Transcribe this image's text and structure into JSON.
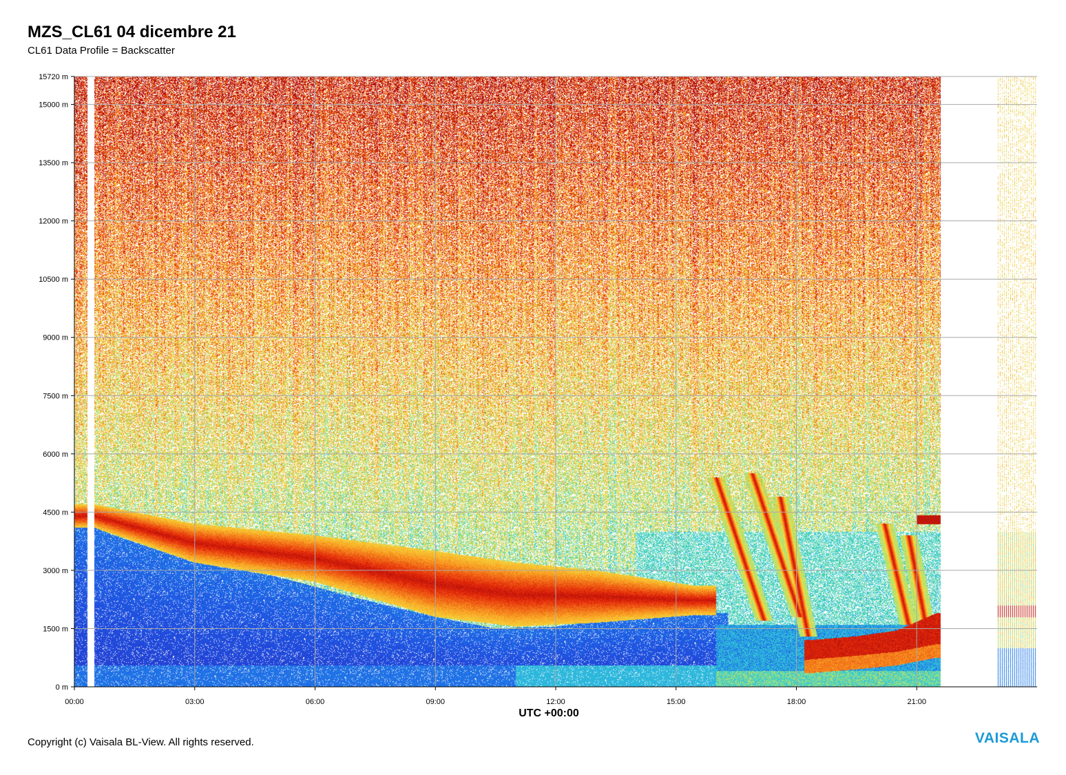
{
  "header": {
    "title": "MZS_CL61 04 dicembre 21",
    "subtitle": "CL61 Data Profile = Backscatter"
  },
  "footer": {
    "copyright": "Copyright (c) Vaisala BL-View. All rights reserved.",
    "brand": "VAISALA"
  },
  "colors": {
    "brand": "#1b9ad6",
    "grid": "#a8a8a8",
    "low_signal": "#1f3fe0",
    "medium_signal": "#e8d83a",
    "high_signal": "#e62a0c",
    "max_signal": "#a80c0c"
  },
  "chart_data": {
    "type": "heatmap",
    "title": "MZS_CL61 04 dicembre 21",
    "subtitle": "CL61 Data Profile = Backscatter",
    "xlabel": "UTC +00:00",
    "ylabel": "",
    "xlim": [
      0,
      24
    ],
    "ylim": [
      0,
      15720
    ],
    "grid": true,
    "x_ticks": [
      {
        "value": 0,
        "label": "00:00"
      },
      {
        "value": 3,
        "label": "03:00"
      },
      {
        "value": 6,
        "label": "06:00"
      },
      {
        "value": 9,
        "label": "09:00"
      },
      {
        "value": 12,
        "label": "12:00"
      },
      {
        "value": 15,
        "label": "15:00"
      },
      {
        "value": 18,
        "label": "18:00"
      },
      {
        "value": 21,
        "label": "21:00"
      }
    ],
    "y_ticks": [
      {
        "value": 0,
        "label": "0 m"
      },
      {
        "value": 1500,
        "label": "1500 m"
      },
      {
        "value": 3000,
        "label": "3000 m"
      },
      {
        "value": 4500,
        "label": "4500 m"
      },
      {
        "value": 6000,
        "label": "6000 m"
      },
      {
        "value": 7500,
        "label": "7500 m"
      },
      {
        "value": 9000,
        "label": "9000 m"
      },
      {
        "value": 10500,
        "label": "10500 m"
      },
      {
        "value": 12000,
        "label": "12000 m"
      },
      {
        "value": 13500,
        "label": "13500 m"
      },
      {
        "value": 15000,
        "label": "15000 m"
      },
      {
        "value": 15720,
        "label": "15720 m"
      }
    ],
    "data_gaps": [
      [
        0.33,
        0.5
      ],
      [
        21.6,
        23.0
      ]
    ],
    "aerosol_layer_top": [
      {
        "t": 0.0,
        "h": 4300
      },
      {
        "t": 1.0,
        "h": 3900
      },
      {
        "t": 3.0,
        "h": 3200
      },
      {
        "t": 5.0,
        "h": 2850
      },
      {
        "t": 7.0,
        "h": 2300
      },
      {
        "t": 9.0,
        "h": 1800
      },
      {
        "t": 10.5,
        "h": 1500
      },
      {
        "t": 12.0,
        "h": 1550
      },
      {
        "t": 13.5,
        "h": 1750
      },
      {
        "t": 15.0,
        "h": 1850
      },
      {
        "t": 16.0,
        "h": 1900
      }
    ],
    "elevated_layer": [
      {
        "t": 0.5,
        "bottom": 4100,
        "top": 4700
      },
      {
        "t": 3.0,
        "bottom": 3200,
        "top": 4200
      },
      {
        "t": 6.0,
        "bottom": 2700,
        "top": 3900
      },
      {
        "t": 9.0,
        "bottom": 1800,
        "top": 3500
      },
      {
        "t": 11.0,
        "bottom": 1550,
        "top": 3200
      },
      {
        "t": 13.0,
        "bottom": 1650,
        "top": 3000
      },
      {
        "t": 15.5,
        "bottom": 1850,
        "top": 2600
      }
    ],
    "low_cloud_layer": [
      {
        "t": 18.3,
        "bottom": 700,
        "top": 1200
      },
      {
        "t": 19.5,
        "bottom": 800,
        "top": 1300
      },
      {
        "t": 20.5,
        "bottom": 900,
        "top": 1450
      },
      {
        "t": 21.5,
        "bottom": 1100,
        "top": 1900
      }
    ],
    "fall_streaks": [
      {
        "t_top": 16.0,
        "h_top": 5400,
        "t_bottom": 17.2,
        "h_bottom": 1700
      },
      {
        "t_top": 16.9,
        "h_top": 5500,
        "t_bottom": 18.1,
        "h_bottom": 1800
      },
      {
        "t_top": 17.6,
        "h_top": 4900,
        "t_bottom": 18.3,
        "h_bottom": 1300
      },
      {
        "t_top": 20.2,
        "h_top": 4200,
        "t_bottom": 20.8,
        "h_bottom": 1600
      },
      {
        "t_top": 20.8,
        "h_top": 3900,
        "t_bottom": 21.3,
        "h_bottom": 1200
      }
    ],
    "elevated_patches": [
      {
        "t_start": 21.0,
        "t_end": 21.6,
        "h": 4300
      }
    ]
  }
}
